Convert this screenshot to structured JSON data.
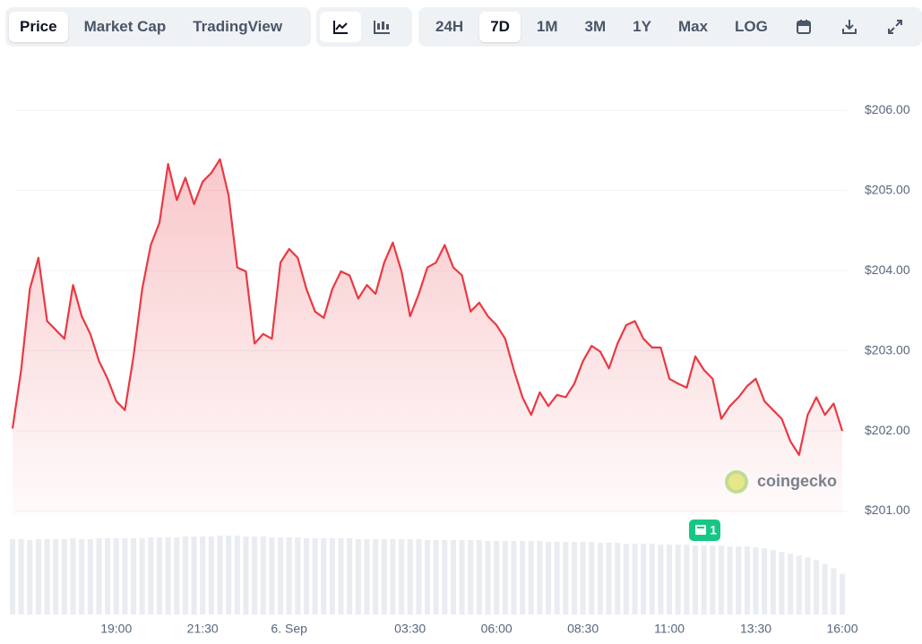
{
  "toolbar": {
    "views": [
      "Price",
      "Market Cap",
      "TradingView"
    ],
    "active_view": "Price",
    "ranges": [
      "24H",
      "7D",
      "1M",
      "3M",
      "1Y",
      "Max",
      "LOG"
    ],
    "active_range": "7D"
  },
  "chart_data": {
    "type": "area",
    "categories": [
      null,
      null,
      null,
      null,
      null,
      null,
      null,
      null,
      null,
      null,
      null,
      null,
      "19:00",
      null,
      null,
      null,
      null,
      null,
      null,
      null,
      null,
      null,
      "21:30",
      null,
      null,
      null,
      null,
      null,
      null,
      null,
      null,
      null,
      "6. Sep",
      null,
      null,
      null,
      null,
      null,
      null,
      null,
      null,
      null,
      null,
      null,
      null,
      null,
      "03:30",
      null,
      null,
      null,
      null,
      null,
      null,
      null,
      null,
      null,
      "06:00",
      null,
      null,
      null,
      null,
      null,
      null,
      null,
      null,
      null,
      "08:30",
      null,
      null,
      null,
      null,
      null,
      null,
      null,
      null,
      null,
      "11:00",
      null,
      null,
      null,
      null,
      null,
      null,
      null,
      null,
      null,
      "13:30",
      null,
      null,
      null,
      null,
      null,
      null,
      null,
      null,
      null,
      "16:00"
    ],
    "color": "#ea3943",
    "values": [
      202.03,
      202.76,
      203.77,
      204.16,
      203.37,
      203.26,
      203.15,
      203.82,
      203.43,
      203.21,
      202.87,
      202.65,
      202.37,
      202.26,
      202.93,
      203.77,
      204.32,
      204.6,
      205.33,
      204.88,
      205.16,
      204.83,
      205.11,
      205.22,
      205.39,
      204.94,
      204.04,
      203.99,
      203.09,
      203.21,
      203.15,
      204.1,
      204.27,
      204.16,
      203.77,
      203.49,
      203.41,
      203.77,
      203.99,
      203.94,
      203.65,
      203.82,
      203.71,
      204.1,
      204.35,
      203.99,
      203.43,
      203.71,
      204.04,
      204.1,
      204.32,
      204.04,
      203.94,
      203.49,
      203.6,
      203.43,
      203.32,
      203.15,
      202.76,
      202.42,
      202.2,
      202.48,
      202.31,
      202.45,
      202.42,
      202.59,
      202.87,
      203.06,
      202.99,
      202.78,
      203.09,
      203.32,
      203.37,
      203.15,
      203.04,
      203.04,
      202.65,
      202.59,
      202.54,
      202.93,
      202.76,
      202.65,
      202.15,
      202.31,
      202.42,
      202.56,
      202.65,
      202.37,
      202.26,
      202.15,
      201.87,
      201.7,
      202.2,
      202.42,
      202.2,
      202.34,
      202.0
    ],
    "volume": [
      83,
      83,
      82,
      83,
      83,
      83,
      83,
      84,
      83,
      83,
      84,
      84,
      84,
      84,
      84,
      84,
      85,
      85,
      85,
      85,
      86,
      86,
      86,
      86,
      87,
      87,
      87,
      86,
      86,
      86,
      85,
      85,
      85,
      85,
      84,
      84,
      84,
      84,
      84,
      84,
      83,
      83,
      83,
      83,
      83,
      83,
      83,
      83,
      82,
      82,
      82,
      82,
      82,
      82,
      82,
      81,
      81,
      81,
      81,
      81,
      81,
      81,
      80,
      80,
      80,
      80,
      80,
      80,
      79,
      79,
      79,
      78,
      78,
      78,
      78,
      77,
      77,
      77,
      77,
      76,
      76,
      76,
      76,
      75,
      75,
      75,
      74,
      73,
      71,
      69,
      67,
      65,
      63,
      60,
      56,
      51,
      45
    ],
    "ylim": [
      200.95,
      206.55
    ],
    "yticks": [
      {
        "value": 201,
        "label": "$201.00"
      },
      {
        "value": 202,
        "label": "$202.00"
      },
      {
        "value": 203,
        "label": "$203.00"
      },
      {
        "value": 204,
        "label": "$204.00"
      },
      {
        "value": 205,
        "label": "$205.00"
      },
      {
        "value": 206,
        "label": "$206.00"
      }
    ],
    "grid": true,
    "watermark": "coingecko",
    "news_count": 1
  }
}
